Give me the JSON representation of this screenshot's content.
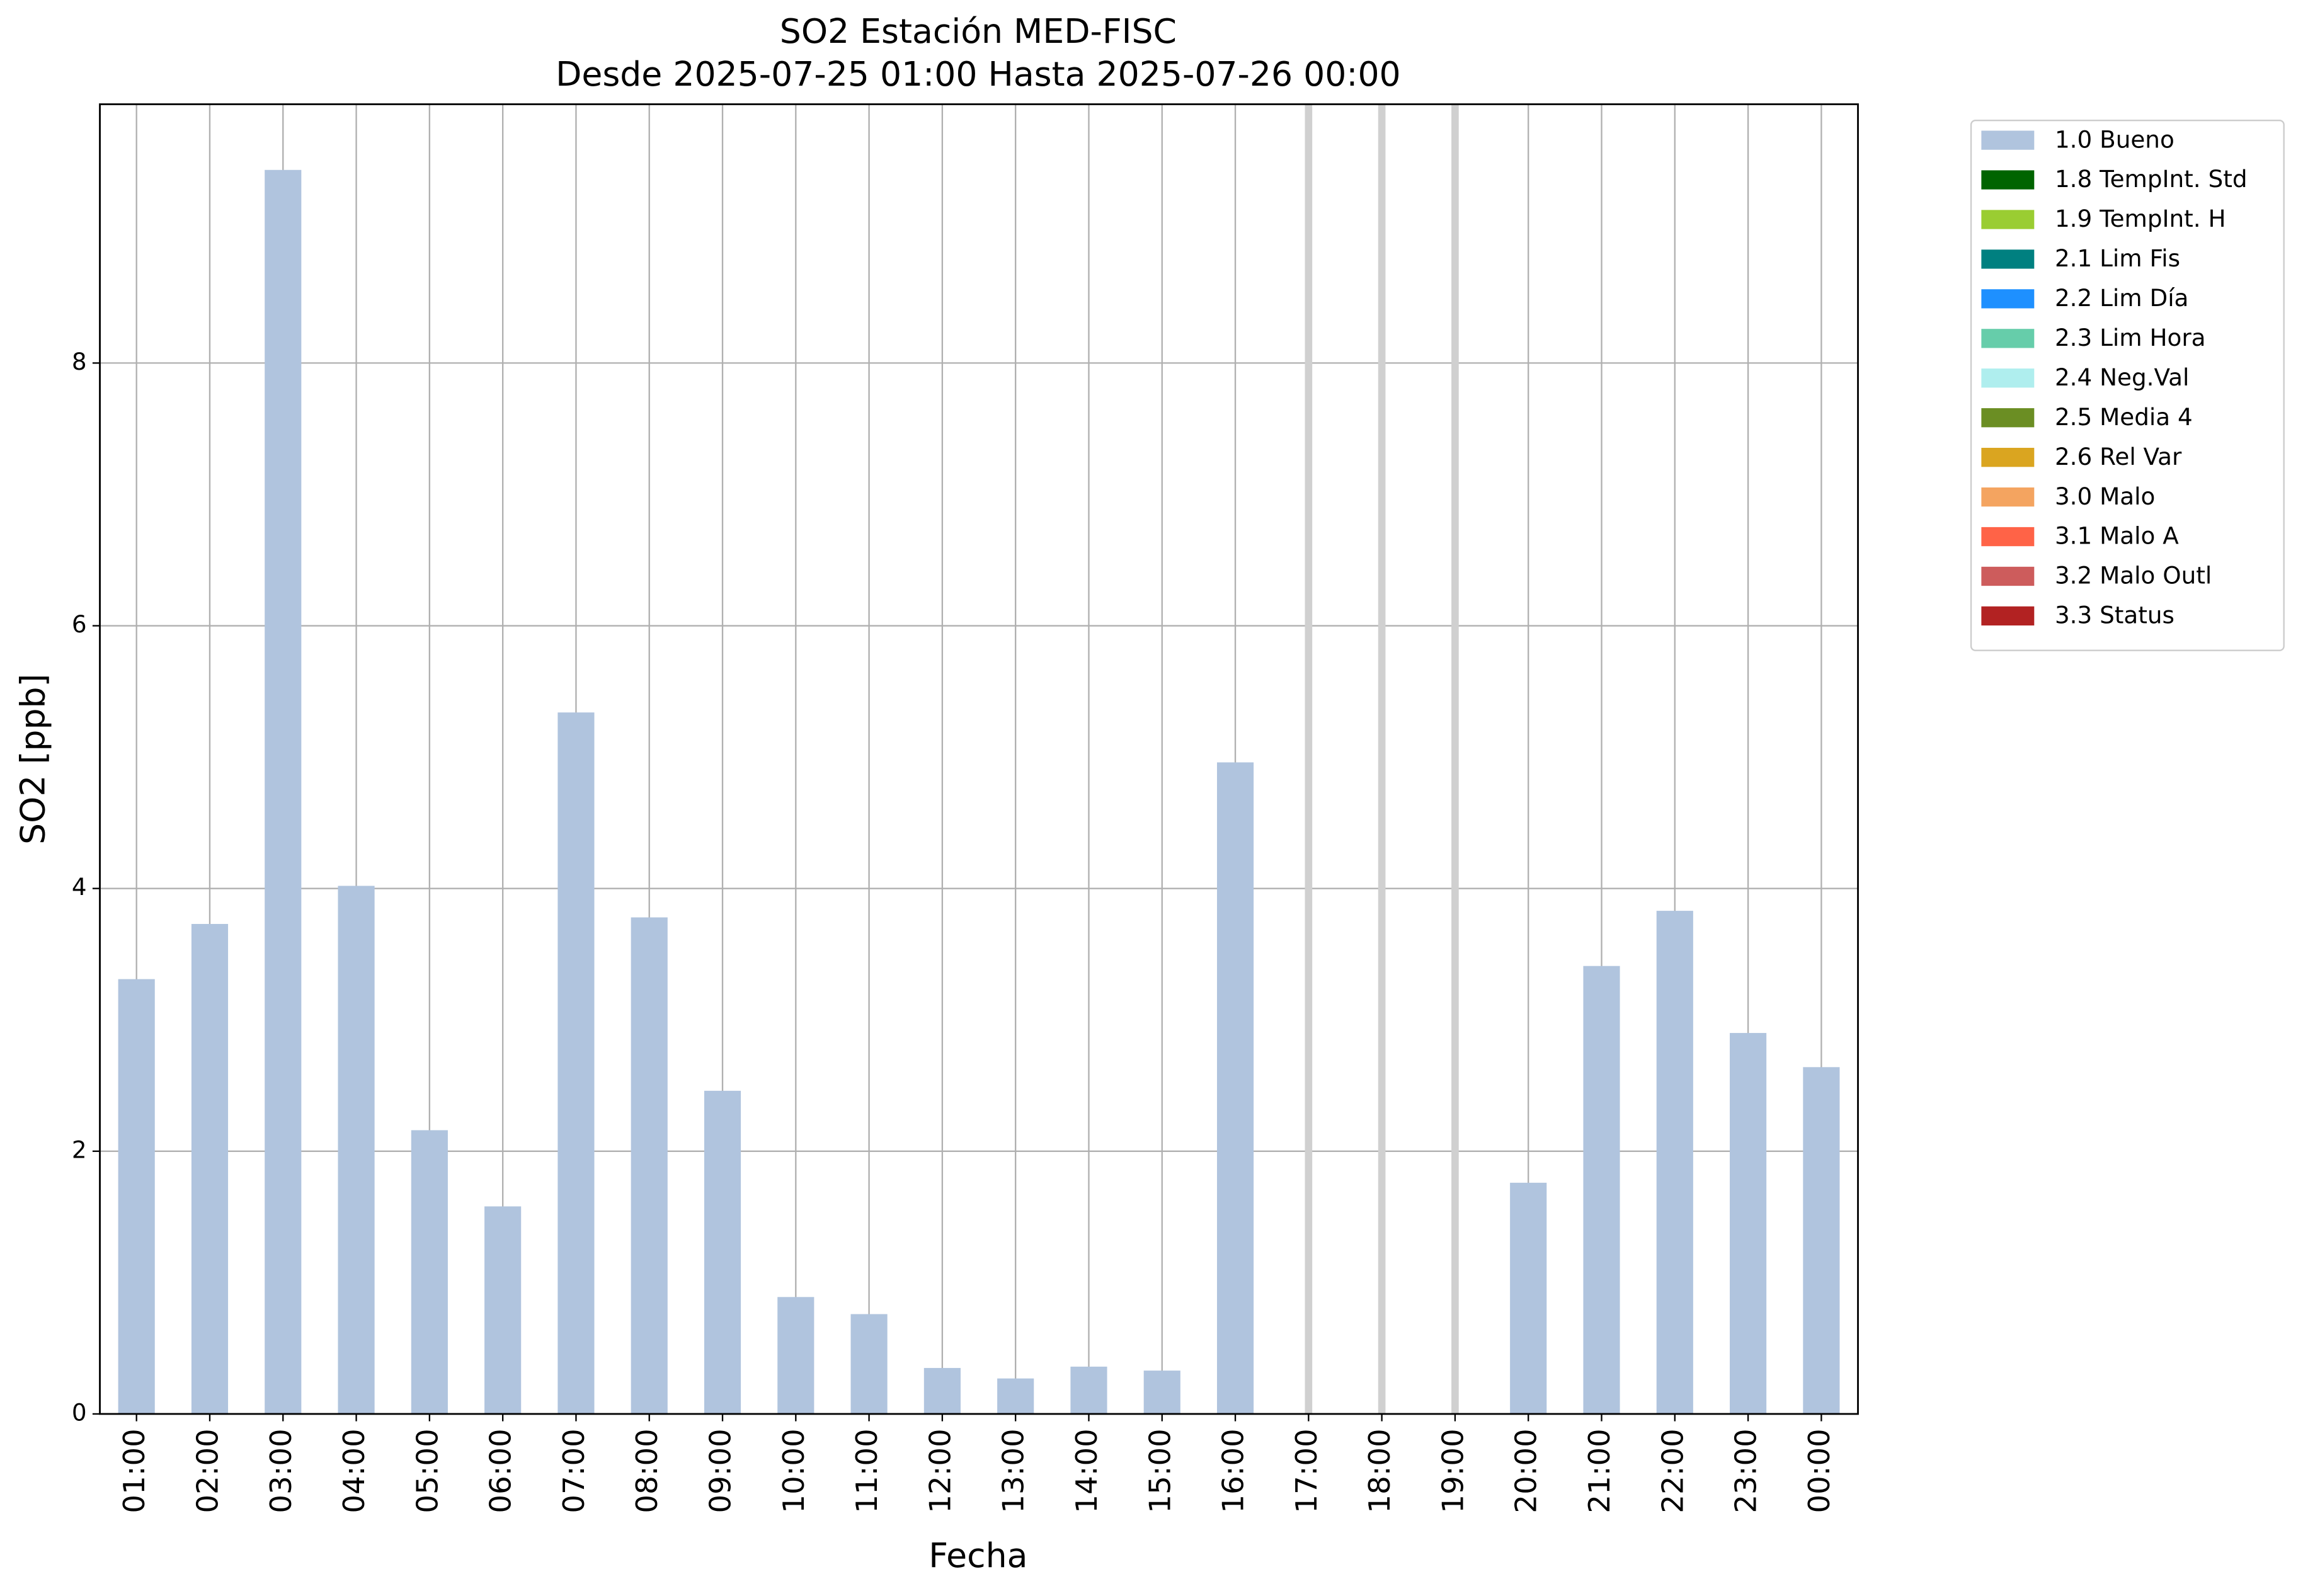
{
  "chart_data": {
    "type": "bar",
    "title": "SO2 Estación MED-FISC",
    "subtitle": "Desde 2025-07-25 01:00 Hasta 2025-07-26 00:00",
    "x_label": "Fecha",
    "y_label": "SO2 [ppb]",
    "categories": [
      "01:00",
      "02:00",
      "03:00",
      "04:00",
      "05:00",
      "06:00",
      "07:00",
      "08:00",
      "09:00",
      "10:00",
      "11:00",
      "12:00",
      "13:00",
      "14:00",
      "15:00",
      "16:00",
      "17:00",
      "18:00",
      "19:00",
      "20:00",
      "21:00",
      "22:00",
      "23:00",
      "00:00"
    ],
    "series": [
      {
        "name": "1.0 Bueno",
        "color": "#b0c4de",
        "values": [
          3.31,
          3.73,
          9.47,
          4.02,
          2.16,
          1.58,
          5.34,
          3.78,
          2.46,
          0.89,
          0.76,
          0.35,
          0.27,
          0.36,
          0.33,
          4.96,
          null,
          null,
          null,
          1.76,
          3.41,
          3.83,
          2.9,
          2.64
        ]
      },
      {
        "name": "1.8 TempInt. Std",
        "color": "#006400",
        "values": [
          null,
          null,
          null,
          null,
          null,
          null,
          null,
          null,
          null,
          null,
          null,
          null,
          null,
          null,
          null,
          null,
          null,
          null,
          null,
          null,
          null,
          null,
          null,
          null
        ]
      },
      {
        "name": "1.9 TempInt. H",
        "color": "#9acd32",
        "values": [
          null,
          null,
          null,
          null,
          null,
          null,
          null,
          null,
          null,
          null,
          null,
          null,
          null,
          null,
          null,
          null,
          null,
          null,
          null,
          null,
          null,
          null,
          null,
          null
        ]
      },
      {
        "name": "2.1 Lim Fis",
        "color": "#008080",
        "values": [
          null,
          null,
          null,
          null,
          null,
          null,
          null,
          null,
          null,
          null,
          null,
          null,
          null,
          null,
          null,
          null,
          null,
          null,
          null,
          null,
          null,
          null,
          null,
          null
        ]
      },
      {
        "name": "2.2 Lim Día",
        "color": "#1e90ff",
        "values": [
          null,
          null,
          null,
          null,
          null,
          null,
          null,
          null,
          null,
          null,
          null,
          null,
          null,
          null,
          null,
          null,
          null,
          null,
          null,
          null,
          null,
          null,
          null,
          null
        ]
      },
      {
        "name": "2.3 Lim Hora",
        "color": "#66cdaa",
        "values": [
          null,
          null,
          null,
          null,
          null,
          null,
          null,
          null,
          null,
          null,
          null,
          null,
          null,
          null,
          null,
          null,
          null,
          null,
          null,
          null,
          null,
          null,
          null,
          null
        ]
      },
      {
        "name": "2.4 Neg.Val",
        "color": "#afeeee",
        "values": [
          null,
          null,
          null,
          null,
          null,
          null,
          null,
          null,
          null,
          null,
          null,
          null,
          null,
          null,
          null,
          null,
          null,
          null,
          null,
          null,
          null,
          null,
          null,
          null
        ]
      },
      {
        "name": "2.5 Media 4",
        "color": "#6b8e23",
        "values": [
          null,
          null,
          null,
          null,
          null,
          null,
          null,
          null,
          null,
          null,
          null,
          null,
          null,
          null,
          null,
          null,
          null,
          null,
          null,
          null,
          null,
          null,
          null,
          null
        ]
      },
      {
        "name": "2.6 Rel Var",
        "color": "#daa520",
        "values": [
          null,
          null,
          null,
          null,
          null,
          null,
          null,
          null,
          null,
          null,
          null,
          null,
          null,
          null,
          null,
          null,
          null,
          null,
          null,
          null,
          null,
          null,
          null,
          null
        ]
      },
      {
        "name": "3.0 Malo",
        "color": "#f4a460",
        "values": [
          null,
          null,
          null,
          null,
          null,
          null,
          null,
          null,
          null,
          null,
          null,
          null,
          null,
          null,
          null,
          null,
          null,
          null,
          null,
          null,
          null,
          null,
          null,
          null
        ]
      },
      {
        "name": "3.1 Malo A",
        "color": "#ff6347",
        "values": [
          null,
          null,
          null,
          null,
          null,
          null,
          null,
          null,
          null,
          null,
          null,
          null,
          null,
          null,
          null,
          null,
          null,
          null,
          null,
          null,
          null,
          null,
          null,
          null
        ]
      },
      {
        "name": "3.2 Malo Outl",
        "color": "#cd5c5c",
        "values": [
          null,
          null,
          null,
          null,
          null,
          null,
          null,
          null,
          null,
          null,
          null,
          null,
          null,
          null,
          null,
          null,
          null,
          null,
          null,
          null,
          null,
          null,
          null,
          null
        ]
      },
      {
        "name": "3.3 Status",
        "color": "#b22222",
        "values": [
          null,
          null,
          null,
          null,
          null,
          null,
          null,
          null,
          null,
          null,
          null,
          null,
          null,
          null,
          null,
          null,
          null,
          null,
          null,
          null,
          null,
          null,
          null,
          null
        ]
      }
    ],
    "ylim": [
      0,
      9.97
    ],
    "yticks": [
      0,
      2,
      4,
      6,
      8
    ],
    "grid": true,
    "legend": "outside-upper-right"
  }
}
